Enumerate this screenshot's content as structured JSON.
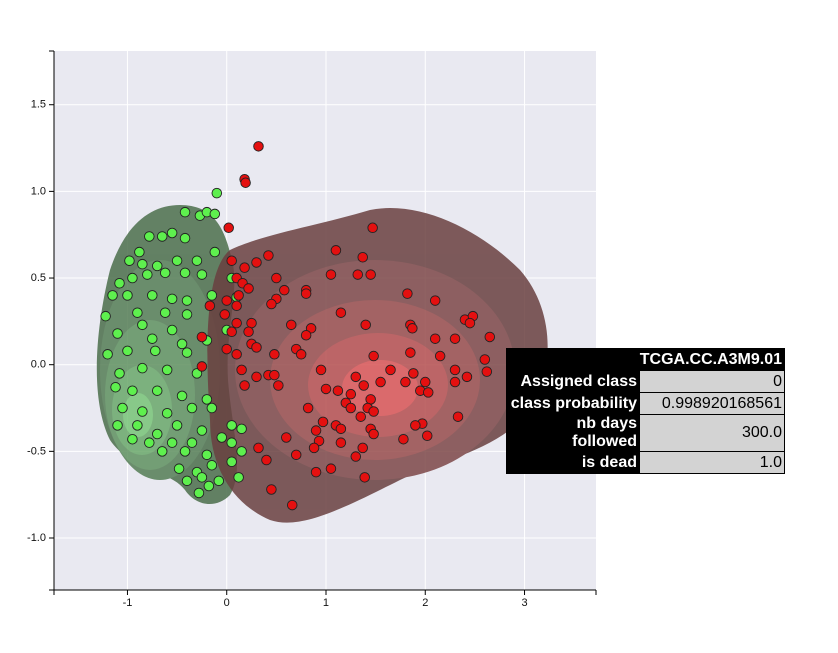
{
  "chart_data": {
    "type": "scatter",
    "xlim": [
      -1.74,
      3.72
    ],
    "ylim": [
      -1.3,
      1.81
    ],
    "xticks": [
      -1,
      0,
      1,
      2,
      3
    ],
    "yticks": [
      {
        "value": -1.0,
        "label": "-1.0"
      },
      -0.5,
      {
        "value": 0.0,
        "label": "0.0"
      },
      0.5,
      {
        "value": 1.0,
        "label": "1.0"
      },
      1.5
    ],
    "grid": true,
    "series": [
      {
        "color": "#5ef04e",
        "x": [
          -0.1,
          -0.42,
          -0.27,
          -0.2,
          -0.12,
          -0.78,
          -0.65,
          -0.55,
          -0.42,
          -0.88,
          -0.98,
          -0.85,
          -0.7,
          -0.5,
          -0.3,
          -0.12,
          -1.08,
          -0.95,
          -0.8,
          -0.62,
          -0.42,
          -0.25,
          0.05,
          -1.15,
          -1.0,
          -0.75,
          -0.55,
          -0.4,
          -0.15,
          0.1,
          -1.22,
          -0.9,
          -0.62,
          -0.4,
          -0.85,
          -0.55,
          -1.1,
          -0.75,
          -0.45,
          -0.2,
          0.0,
          -1.2,
          -1.0,
          -0.72,
          -0.4,
          -1.08,
          -0.85,
          -0.6,
          -0.3,
          -1.12,
          -0.95,
          -0.7,
          -0.45,
          -0.2,
          -1.05,
          -0.85,
          -0.6,
          -0.35,
          -0.15,
          -1.1,
          -0.9,
          -0.7,
          -0.5,
          -0.25,
          0.05,
          0.15,
          -0.95,
          -0.78,
          -0.55,
          -0.35,
          -0.05,
          -0.65,
          -0.42,
          -0.2,
          0.05,
          0.15,
          -0.48,
          -0.3,
          -0.15,
          0.05,
          -0.4,
          -0.25,
          -0.08,
          0.12,
          -0.28,
          -0.18
        ],
        "values": [
          0.99,
          0.88,
          0.86,
          0.88,
          0.87,
          0.74,
          0.74,
          0.76,
          0.73,
          0.65,
          0.6,
          0.58,
          0.57,
          0.6,
          0.6,
          0.65,
          0.47,
          0.5,
          0.52,
          0.53,
          0.53,
          0.52,
          0.5,
          0.4,
          0.4,
          0.4,
          0.38,
          0.37,
          0.4,
          0.39,
          0.28,
          0.3,
          0.3,
          0.29,
          0.23,
          0.2,
          0.18,
          0.15,
          0.12,
          0.14,
          0.2,
          0.06,
          0.08,
          0.08,
          0.07,
          -0.05,
          -0.02,
          -0.03,
          -0.05,
          -0.13,
          -0.15,
          -0.15,
          -0.18,
          -0.2,
          -0.25,
          -0.27,
          -0.28,
          -0.25,
          -0.25,
          -0.35,
          -0.35,
          -0.4,
          -0.35,
          -0.38,
          -0.35,
          -0.37,
          -0.43,
          -0.45,
          -0.45,
          -0.45,
          -0.42,
          -0.5,
          -0.5,
          -0.52,
          -0.45,
          -0.5,
          -0.6,
          -0.62,
          -0.58,
          -0.56,
          -0.67,
          -0.65,
          -0.67,
          -0.65,
          -0.74,
          -0.7
        ]
      },
      {
        "color": "#e41010",
        "x": [
          0.32,
          0.18,
          0.19,
          0.02,
          1.47,
          1.1,
          1.37,
          0.42,
          0.3,
          0.18,
          0.05,
          1.05,
          1.32,
          1.45,
          0.5,
          0.1,
          0.16,
          0.22,
          0.58,
          0.8,
          0.8,
          1.82,
          0.12,
          0.5,
          0.45,
          0.0,
          0.1,
          2.1,
          -0.17,
          1.15,
          -0.02,
          2.4,
          2.48,
          2.45,
          1.4,
          0.1,
          0.25,
          0.65,
          0.85,
          1.85,
          1.87,
          0.05,
          0.22,
          0.8,
          2.1,
          2.3,
          2.65,
          -0.25,
          0.25,
          0.3,
          0.0,
          0.7,
          1.85,
          2.15,
          0.1,
          0.48,
          0.75,
          1.48,
          2.6,
          -0.25,
          0.15,
          0.95,
          1.65,
          2.3,
          2.62,
          0.3,
          0.42,
          0.48,
          1.3,
          1.88,
          2.42,
          1.8,
          2.0,
          0.18,
          0.52,
          1.0,
          1.55,
          1.38,
          2.3,
          1.12,
          1.25,
          1.95,
          2.03,
          1.2,
          0.82,
          1.45,
          1.42,
          1.25,
          1.1,
          1.35,
          0.97,
          1.48,
          1.97,
          2.33,
          0.9,
          1.15,
          1.45,
          1.9,
          0.6,
          0.93,
          1.15,
          1.48,
          1.78,
          2.02,
          0.32,
          0.88,
          1.37,
          0.7,
          1.3,
          0.4,
          1.05,
          0.9,
          1.39,
          0.45,
          0.66
        ],
        "values": [
          1.26,
          1.07,
          1.05,
          0.79,
          0.79,
          0.66,
          0.62,
          0.63,
          0.59,
          0.56,
          0.6,
          0.52,
          0.52,
          0.52,
          0.5,
          0.5,
          0.47,
          0.44,
          0.43,
          0.43,
          0.41,
          0.41,
          0.4,
          0.38,
          0.35,
          0.37,
          0.34,
          0.37,
          0.34,
          0.3,
          0.29,
          0.26,
          0.28,
          0.24,
          0.23,
          0.24,
          0.24,
          0.23,
          0.21,
          0.23,
          0.21,
          0.19,
          0.19,
          0.17,
          0.15,
          0.15,
          0.16,
          0.16,
          0.12,
          0.1,
          0.09,
          0.09,
          0.07,
          0.05,
          0.06,
          0.06,
          0.06,
          0.05,
          0.03,
          -0.01,
          -0.03,
          -0.03,
          -0.03,
          -0.03,
          -0.04,
          -0.07,
          -0.06,
          -0.06,
          -0.07,
          -0.05,
          -0.07,
          -0.1,
          -0.1,
          -0.12,
          -0.12,
          -0.14,
          -0.1,
          -0.12,
          -0.1,
          -0.15,
          -0.17,
          -0.15,
          -0.16,
          -0.22,
          -0.25,
          -0.2,
          -0.25,
          -0.25,
          -0.35,
          -0.3,
          -0.33,
          -0.27,
          -0.34,
          -0.3,
          -0.38,
          -0.37,
          -0.37,
          -0.35,
          -0.42,
          -0.44,
          -0.45,
          -0.4,
          -0.43,
          -0.41,
          -0.48,
          -0.48,
          -0.48,
          -0.52,
          -0.53,
          -0.55,
          -0.6,
          -0.62,
          -0.65,
          -0.72,
          -0.81
        ]
      }
    ]
  },
  "tooltip": {
    "title": "TCGA.CC.A3M9.01",
    "rows": [
      [
        "Assigned class",
        "0"
      ],
      [
        "class probability",
        "0.998920168561"
      ],
      [
        "nb days followed",
        "300.0"
      ],
      [
        "is dead",
        "1.0"
      ]
    ]
  }
}
